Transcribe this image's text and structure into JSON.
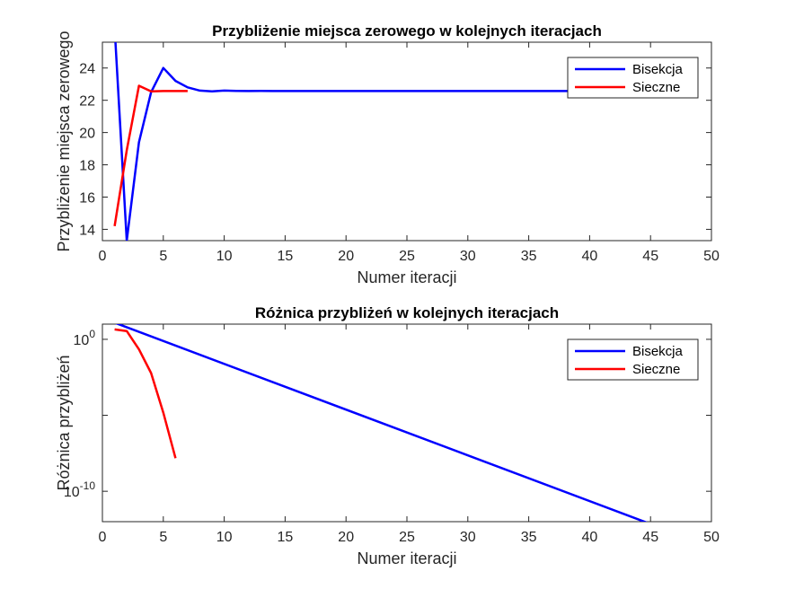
{
  "chart_data": [
    {
      "type": "line",
      "title": "Przybliżenie miejsca zerowego w kolejnych iteracjach",
      "xlabel": "Numer iteracji",
      "ylabel": "Przybliżenie miejsca zerowego",
      "xlim": [
        0,
        50
      ],
      "ylim": [
        13.3,
        25.6
      ],
      "xticks": [
        0,
        5,
        10,
        15,
        20,
        25,
        30,
        35,
        40,
        45,
        50
      ],
      "yticks": [
        14,
        16,
        18,
        20,
        22,
        24
      ],
      "grid": false,
      "legend_position": "top-right",
      "series": [
        {
          "name": "Bisekcja",
          "color": "#0000ff",
          "x": [
            1,
            2,
            3,
            4,
            5,
            6,
            7,
            8,
            9,
            10,
            11,
            12,
            13,
            14,
            15,
            16,
            17,
            18,
            19,
            20,
            21,
            22,
            23,
            24,
            25,
            26,
            27,
            28,
            29,
            30,
            31,
            32,
            33,
            34,
            35,
            36,
            37,
            38,
            39,
            40,
            41,
            42,
            43,
            44,
            45,
            46
          ],
          "y": [
            26.5,
            13.3,
            19.4,
            22.5,
            24.0,
            23.2,
            22.8,
            22.6,
            22.55,
            22.6,
            22.58,
            22.57,
            22.58,
            22.57,
            22.57,
            22.57,
            22.57,
            22.57,
            22.57,
            22.57,
            22.57,
            22.57,
            22.57,
            22.57,
            22.57,
            22.57,
            22.57,
            22.57,
            22.57,
            22.57,
            22.57,
            22.57,
            22.57,
            22.57,
            22.57,
            22.57,
            22.57,
            22.57,
            22.57,
            22.57,
            22.57,
            22.57,
            22.57,
            22.57,
            22.57,
            22.57
          ]
        },
        {
          "name": "Sieczne",
          "color": "#ff0000",
          "x": [
            1,
            2,
            3,
            4,
            5,
            6,
            7
          ],
          "y": [
            14.2,
            18.9,
            22.9,
            22.55,
            22.57,
            22.57,
            22.57
          ]
        }
      ]
    },
    {
      "type": "line",
      "title": "Różnica przybliżeń w kolejnych iteracjach",
      "xlabel": "Numer iteracji",
      "ylabel": "Różnica przybliżeń",
      "xlim": [
        0,
        50
      ],
      "ylim": [
        1e-12,
        10
      ],
      "yscale": "log",
      "xticks": [
        0,
        5,
        10,
        15,
        20,
        25,
        30,
        35,
        40,
        45,
        50
      ],
      "yticks": [
        {
          "value": 1,
          "base": "10",
          "exp": "0"
        },
        {
          "value": 1e-05,
          "base": "",
          "exp": ""
        },
        {
          "value": 1e-10,
          "base": "10",
          "exp": "-10"
        }
      ],
      "grid": false,
      "legend_position": "top-right",
      "series": [
        {
          "name": "Bisekcja",
          "color": "#0000ff",
          "x": [
            1,
            46
          ],
          "y": [
            12.5,
            3.5e-13
          ]
        },
        {
          "name": "Sieczne",
          "color": "#ff0000",
          "x": [
            1,
            2,
            3,
            4,
            5,
            6
          ],
          "y": [
            4.5,
            3.5,
            0.22,
            0.006,
            1.5e-05,
            1.5e-08
          ]
        }
      ]
    }
  ]
}
